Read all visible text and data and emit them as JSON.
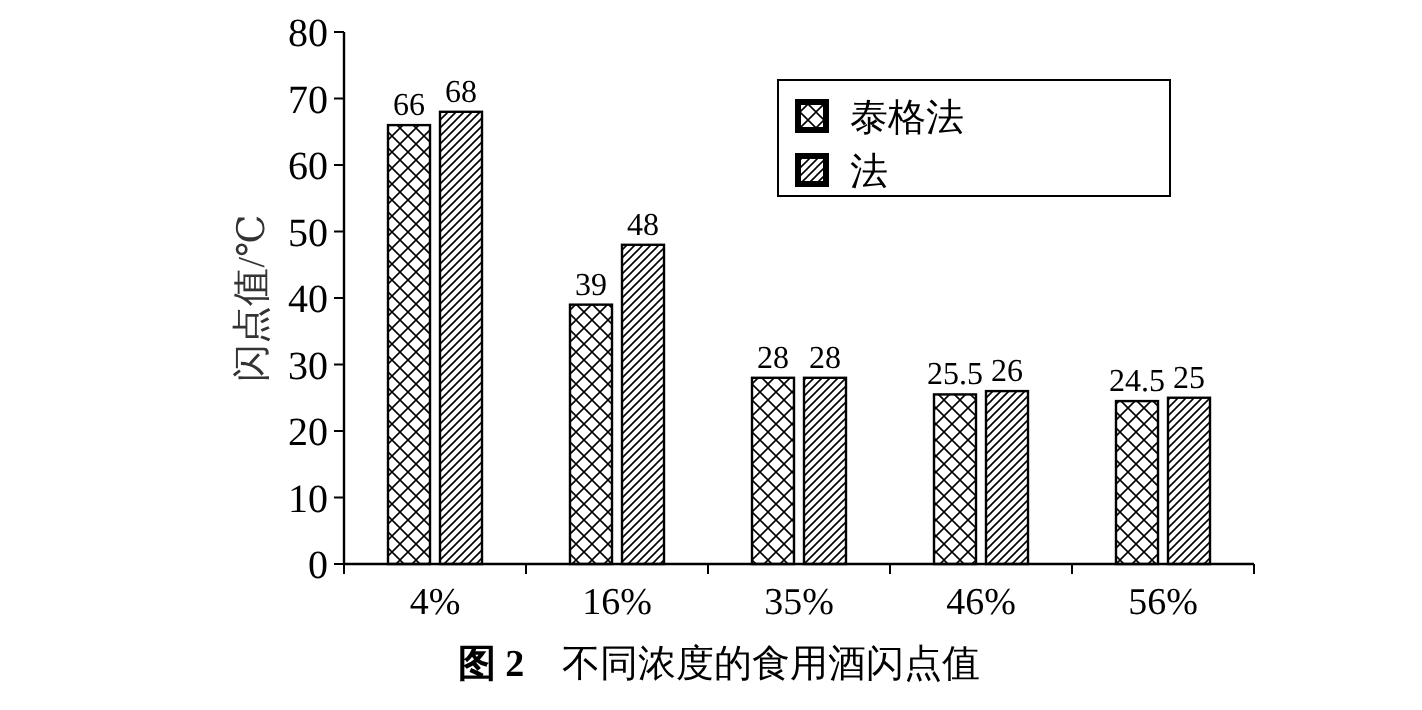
{
  "chart_data": {
    "type": "bar",
    "title": "**图 2**　不同浓度的食用酒闪点值",
    "ylabel": "闪点值/℃",
    "categories": [
      "4%",
      "16%",
      "35%",
      "46%",
      "56%"
    ],
    "series": [
      {
        "name": "泰格法",
        "color": "#000000",
        "values": [
          66,
          39,
          28,
          25.5,
          24.5
        ]
      },
      {
        "name": "法",
        "color": "#000000",
        "values": [
          68,
          48,
          28,
          26,
          25
        ]
      }
    ],
    "ylim": [
      0,
      80
    ],
    "yticks": [
      0,
      10,
      20,
      30,
      40,
      50,
      60,
      70,
      80
    ],
    "data_labels": true,
    "legend": "top right",
    "grid": false
  }
}
